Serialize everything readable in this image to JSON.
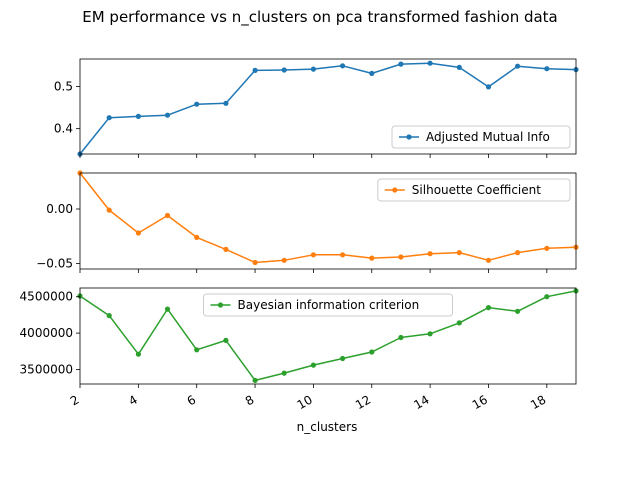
{
  "chart_data": {
    "title": "EM performance vs n_clusters on pca transformed fashion data",
    "xlabel": "n_clusters",
    "x": [
      2,
      3,
      4,
      5,
      6,
      7,
      8,
      9,
      10,
      11,
      12,
      13,
      14,
      15,
      16,
      17,
      18,
      19
    ],
    "xlim": [
      2,
      19
    ],
    "xticks": [
      "2",
      "4",
      "6",
      "8",
      "10",
      "12",
      "14",
      "16",
      "18"
    ],
    "subplots": [
      {
        "type": "line",
        "series": [
          {
            "name": "Adjusted Mutual Info",
            "color": "#1f77b4",
            "values": [
              0.34,
              0.426,
              0.429,
              0.432,
              0.458,
              0.46,
              0.538,
              0.539,
              0.541,
              0.549,
              0.531,
              0.553,
              0.555,
              0.545,
              0.499,
              0.548,
              0.542,
              0.54
            ]
          }
        ],
        "ylim": [
          0.34,
          0.565
        ],
        "yticks": [
          "0.4",
          "0.5"
        ],
        "legend": "lower-right",
        "grid": false
      },
      {
        "type": "line",
        "series": [
          {
            "name": "Silhouette Coefficient",
            "color": "#ff7f0e",
            "values": [
              0.033,
              -0.001,
              -0.022,
              -0.006,
              -0.026,
              -0.037,
              -0.049,
              -0.047,
              -0.042,
              -0.042,
              -0.045,
              -0.044,
              -0.041,
              -0.04,
              -0.047,
              -0.04,
              -0.036,
              -0.035
            ]
          }
        ],
        "ylim": [
          -0.055,
          0.033
        ],
        "yticks": [
          "0.00",
          "−0.05"
        ],
        "legend": "upper-right",
        "grid": false
      },
      {
        "type": "line",
        "series": [
          {
            "name": "Bayesian information criterion",
            "color": "#2ca02c",
            "values": [
              4510000,
              4240000,
              3710000,
              4330000,
              3770000,
              3900000,
              3350000,
              3450000,
              3560000,
              3650000,
              3740000,
              3940000,
              3990000,
              4140000,
              4350000,
              4300000,
              4500000,
              4580000
            ]
          }
        ],
        "ylim": [
          3300000,
          4620000
        ],
        "yticks": [
          "4500000",
          "4000000",
          "3500000"
        ],
        "legend": "upper-center",
        "grid": false
      }
    ]
  }
}
